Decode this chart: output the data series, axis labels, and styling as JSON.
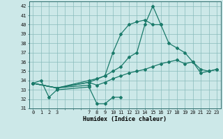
{
  "xlabel": "Humidex (Indice chaleur)",
  "bg_color": "#cce8e8",
  "grid_color": "#88bbbb",
  "line_color": "#1a7a6a",
  "xlim": [
    -0.5,
    23.5
  ],
  "ylim": [
    31,
    42.5
  ],
  "yticks": [
    31,
    32,
    33,
    34,
    35,
    36,
    37,
    38,
    39,
    40,
    41,
    42
  ],
  "xtick_show": [
    0,
    1,
    2,
    3,
    7,
    8,
    9,
    10,
    11,
    12,
    13,
    14,
    15,
    16,
    17,
    18,
    19,
    20,
    21,
    22,
    23
  ],
  "series": [
    {
      "x": [
        0,
        1,
        2,
        3,
        7,
        8,
        9,
        10,
        11
      ],
      "y": [
        33.7,
        34.0,
        32.2,
        33.0,
        33.3,
        31.5,
        31.5,
        32.2,
        32.2
      ]
    },
    {
      "x": [
        0,
        3,
        7
      ],
      "y": [
        33.7,
        33.2,
        33.5
      ]
    },
    {
      "x": [
        0,
        3,
        7,
        8,
        9,
        10,
        11,
        12,
        13,
        14,
        15,
        16,
        17,
        18,
        19,
        20,
        21,
        22,
        23
      ],
      "y": [
        33.7,
        33.2,
        33.8,
        33.5,
        33.8,
        34.2,
        34.5,
        34.8,
        35.0,
        35.2,
        35.5,
        35.8,
        36.0,
        36.2,
        35.8,
        36.0,
        34.8,
        35.0,
        35.2
      ]
    },
    {
      "x": [
        0,
        3,
        7,
        9,
        10,
        11,
        12,
        13,
        14,
        15,
        16,
        17,
        18,
        19,
        20,
        21,
        22,
        23
      ],
      "y": [
        33.7,
        33.2,
        33.8,
        34.5,
        35.0,
        35.5,
        36.5,
        37.0,
        40.0,
        42.0,
        40.0,
        38.0,
        37.5,
        37.0,
        36.0,
        35.2,
        35.0,
        35.2
      ]
    },
    {
      "x": [
        0,
        3,
        7,
        8,
        9,
        10,
        11,
        12,
        13,
        14,
        15,
        16
      ],
      "y": [
        33.7,
        33.2,
        34.0,
        34.2,
        34.5,
        37.0,
        39.0,
        40.0,
        40.3,
        40.5,
        40.0,
        40.0
      ]
    }
  ]
}
